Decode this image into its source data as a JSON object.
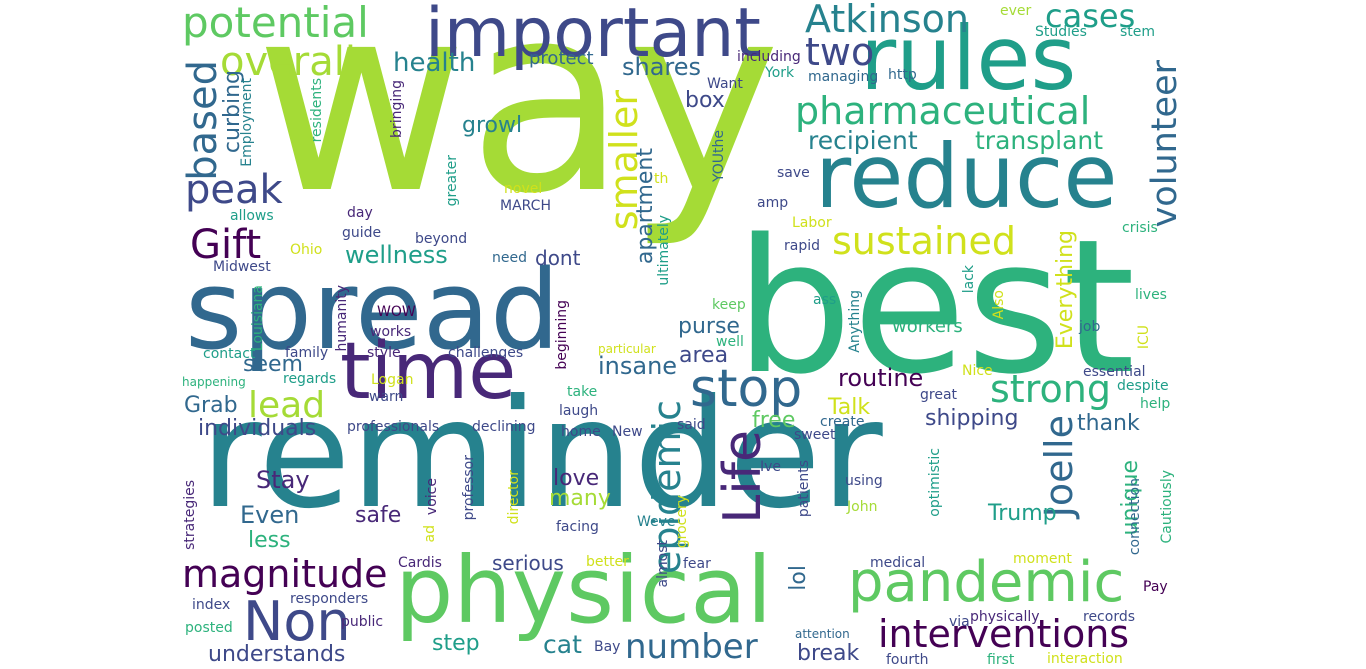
{
  "word_cloud": {
    "palette": {
      "yellow_green": "#a5db36",
      "green": "#5ec962",
      "teal_green": "#2db27d",
      "teal": "#1f9e89",
      "blue_teal": "#26828e",
      "blue": "#31688e",
      "indigo": "#3e4989",
      "purple": "#482878",
      "dark_purple": "#440154",
      "yellow": "#d0e11c"
    },
    "words": [
      "way",
      "best",
      "reminder",
      "spread",
      "physical",
      "reduce",
      "rules",
      "important",
      "time",
      "pandemic",
      "stop",
      "Non",
      "interventions",
      "magnitude",
      "Life",
      "pharmaceutical",
      "volunteer",
      "potential",
      "Atkinson",
      "overall",
      "peak",
      "based",
      "Gift",
      "sustained",
      "epidemic",
      "Joelle",
      "strong",
      "smaller",
      "number",
      "lead",
      "two",
      "cases",
      "recipient",
      "transplant",
      "routine",
      "insane",
      "wellness",
      "health",
      "shares",
      "curbing",
      "growl",
      "box",
      "apartment",
      "purse",
      "area",
      "seem",
      "Grab",
      "individuals",
      "Talk",
      "Even",
      "Stay",
      "less",
      "love",
      "many",
      "safe",
      "unique",
      "Trump",
      "Everything",
      "step",
      "cat",
      "understands",
      "break",
      "free",
      "shipping",
      "thank",
      "lol",
      "serious",
      "protect",
      "dont",
      "including",
      "managing",
      "http",
      "Studies",
      "stem",
      "ever",
      "Want",
      "York",
      "Employment",
      "residents",
      "bringing",
      "YOUthe",
      "novel",
      "MARCH",
      "th",
      "save",
      "amp",
      "Labor",
      "crisis",
      "rapid",
      "day",
      "guide",
      "beyond",
      "need",
      "allows",
      "Ohio",
      "Midwest",
      "greater",
      "ultimately",
      "WOW",
      "works",
      "humanity",
      "keep",
      "Anything",
      "lack",
      "Also",
      "lives",
      "ass",
      "job",
      "ICU",
      "contact",
      "family",
      "style",
      "challenges",
      "beginning",
      "particular",
      "well",
      "workers",
      "Louisiana",
      "happening",
      "regards",
      "Logan",
      "warn",
      "laugh",
      "take",
      "Nice",
      "great",
      "essential",
      "despite",
      "help",
      "professionals",
      "declining",
      "home",
      "New",
      "said",
      "create",
      "sweet",
      "strategies",
      "voice",
      "ad",
      "professor",
      "director",
      "facing",
      "Weve",
      "grocery",
      "Ive",
      "using",
      "John",
      "patients",
      "optimistic",
      "connection",
      "Cautiously",
      "Cardis",
      "better",
      "almost",
      "fear",
      "medical",
      "moment",
      "Pay",
      "index",
      "responders",
      "posted",
      "public",
      "Bay",
      "via",
      "physically",
      "records",
      "attention",
      "fourth",
      "first",
      "interaction"
    ]
  }
}
